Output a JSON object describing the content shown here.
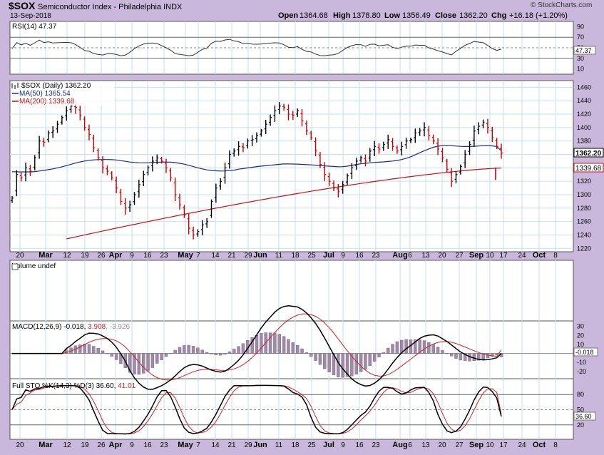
{
  "header": {
    "symbol": "$SOX",
    "name": "Semiconductor Index - Philadelphia INDX",
    "date": "13-Sep-2018",
    "brand": "© StockCharts.com",
    "open_label": "Open",
    "open": "1364.68",
    "high_label": "High",
    "high": "1378.80",
    "low_label": "Low",
    "low": "1356.49",
    "close_label": "Close",
    "close": "1362.20",
    "chg_label": "Chg",
    "chg": "+16.18 (+1.20%)"
  },
  "colors": {
    "frame": "#c9b8dc",
    "panel": "#ffffff",
    "grid": "#c6dff0",
    "up_bar": "#000000",
    "down_bar": "#cc0000",
    "ma50": "#1a2a8a",
    "ma200": "#cc1111",
    "rsi": "#333333",
    "macd": "#000000",
    "signal": "#cc2222",
    "hist": "#a08aa8",
    "sto_k": "#000000",
    "sto_d": "#cc2222",
    "last_box": "#ffffff"
  },
  "rsi_panel": {
    "label": "RSI(14) 47.37",
    "value_badge": "47.37",
    "ticks": [
      "90",
      "70",
      "50",
      "30",
      "10"
    ]
  },
  "price_panel": {
    "label": "$SOX (Daily) 1362.20",
    "ma50_label": "MA(50) 1365.54",
    "ma200_label": "MA(200) 1339.68",
    "close_badge": "1362.20",
    "ma200_badge": "1339.68",
    "ticks": [
      "1460",
      "1440",
      "1420",
      "1400",
      "1380",
      "1360",
      "1340",
      "1320",
      "1300",
      "1280",
      "1260",
      "1240",
      "1220"
    ]
  },
  "volume_panel": {
    "label": "Volume undef"
  },
  "macd_panel": {
    "label": "MACD(12,26,9) -0.018, 3.908, -3.926",
    "label_a": "MACD(12,26,9) -0.018, ",
    "label_b": "3.908",
    "label_c": ", -3.926",
    "value_badge": "-0.018",
    "ticks": [
      "30",
      "20",
      "10",
      "0",
      "-10",
      "-20"
    ]
  },
  "sto_panel": {
    "label_a": "Full STO %K(14,3) %D(3) 36.60, ",
    "label_b": "41.01",
    "value_badge": "36.60",
    "ticks": [
      "80",
      "50",
      "20"
    ]
  },
  "x_axis": {
    "labels": [
      "20",
      "Mar",
      "12",
      "19",
      "26",
      "Apr",
      "9",
      "16",
      "23",
      "May",
      "7",
      "14",
      "21",
      "29",
      "Jun",
      "11",
      "18",
      "25",
      "Jul",
      "9",
      "16",
      "23",
      "Aug",
      "6",
      "13",
      "20",
      "27",
      "Sep",
      "10",
      "17",
      "24",
      "Oct",
      "8"
    ]
  },
  "chart_data": [
    {
      "type": "ohlc",
      "title": "$SOX Semiconductor Index - Philadelphia INDX (Daily)",
      "x_range": [
        "2018-02-16",
        "2018-10-12"
      ],
      "y_range": [
        1215,
        1470
      ],
      "series": [
        {
          "name": "$SOX (Daily)",
          "last_close": 1362.2,
          "close": [
            1295,
            1330,
            1325,
            1340,
            1335,
            1355,
            1380,
            1378,
            1392,
            1395,
            1405,
            1415,
            1425,
            1432,
            1430,
            1418,
            1400,
            1390,
            1370,
            1355,
            1340,
            1335,
            1325,
            1310,
            1290,
            1280,
            1285,
            1300,
            1315,
            1330,
            1340,
            1350,
            1355,
            1350,
            1340,
            1325,
            1300,
            1285,
            1270,
            1250,
            1240,
            1245,
            1255,
            1260,
            1290,
            1310,
            1320,
            1340,
            1360,
            1365,
            1372,
            1370,
            1380,
            1382,
            1388,
            1395,
            1405,
            1415,
            1425,
            1432,
            1430,
            1420,
            1418,
            1425,
            1410,
            1395,
            1385,
            1365,
            1345,
            1330,
            1320,
            1310,
            1305,
            1315,
            1328,
            1340,
            1350,
            1355,
            1350,
            1365,
            1372,
            1368,
            1375,
            1382,
            1372,
            1365,
            1372,
            1380,
            1382,
            1392,
            1395,
            1400,
            1388,
            1380,
            1368,
            1355,
            1338,
            1320,
            1330,
            1342,
            1360,
            1375,
            1395,
            1402,
            1408,
            1400,
            1385,
            1372,
            1362
          ]
        },
        {
          "name": "MA(50)",
          "last": 1365.54
        },
        {
          "name": "MA(200)",
          "last": 1339.68
        }
      ]
    },
    {
      "type": "line",
      "title": "RSI(14)",
      "y_range": [
        0,
        100
      ],
      "series": [
        {
          "name": "RSI(14)",
          "last": 47.37
        }
      ]
    },
    {
      "type": "line",
      "title": "MACD(12,26,9)",
      "series": [
        {
          "name": "MACD",
          "last": -0.018
        },
        {
          "name": "Signal",
          "last": 3.908
        },
        {
          "name": "Histogram",
          "last": -3.926
        }
      ]
    },
    {
      "type": "line",
      "title": "Full STO %K(14,3) %D(3)",
      "y_range": [
        0,
        100
      ],
      "series": [
        {
          "name": "%K",
          "last": 36.6
        },
        {
          "name": "%D",
          "last": 41.01
        }
      ]
    }
  ]
}
